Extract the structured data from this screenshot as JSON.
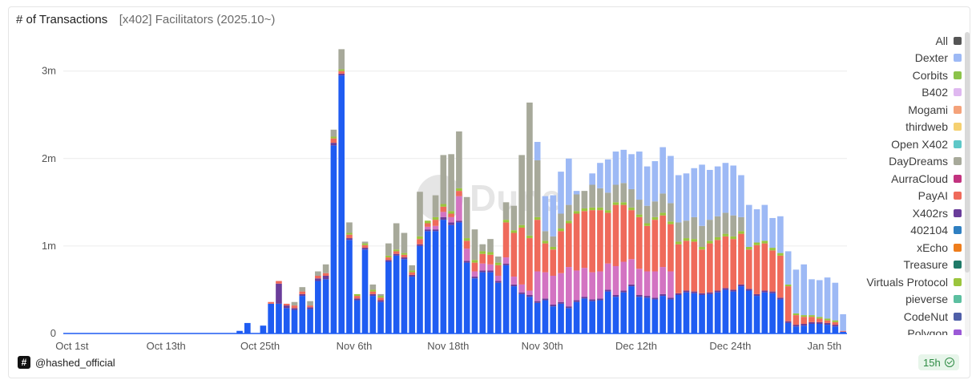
{
  "header": {
    "title": "# of Transactions",
    "subtitle": "[x402] Facilitators (2025.10~)"
  },
  "watermark": "Dune",
  "author": {
    "icon": "#",
    "name": "@hashed_official"
  },
  "freshness": {
    "label": "15h",
    "icon": "check-circle-icon"
  },
  "legend": [
    {
      "name": "All",
      "color": "#555555"
    },
    {
      "name": "Dexter",
      "color": "#9db9f5"
    },
    {
      "name": "Corbits",
      "color": "#8bc34a"
    },
    {
      "name": "B402",
      "color": "#dfb8f0"
    },
    {
      "name": "Mogami",
      "color": "#f4a27a"
    },
    {
      "name": "thirdweb",
      "color": "#f5d070"
    },
    {
      "name": "Open X402",
      "color": "#5ec8c8"
    },
    {
      "name": "DayDreams",
      "color": "#a7a99a"
    },
    {
      "name": "AurraCloud",
      "color": "#c2337f"
    },
    {
      "name": "PayAI",
      "color": "#ef6a5b"
    },
    {
      "name": "X402rs",
      "color": "#6a3d9a"
    },
    {
      "name": "402104",
      "color": "#2f7fc1"
    },
    {
      "name": "xEcho",
      "color": "#ee7d1c"
    },
    {
      "name": "Treasure",
      "color": "#1f7a68"
    },
    {
      "name": "Virtuals Protocol",
      "color": "#9bc53d"
    },
    {
      "name": "pieverse",
      "color": "#5cbfa0"
    },
    {
      "name": "CodeNut",
      "color": "#4f5fa8"
    },
    {
      "name": "Polygon",
      "color": "#9b59d6"
    }
  ],
  "chart_data": {
    "type": "bar",
    "stacked": true,
    "x_tick_labels": [
      "Oct 1st",
      "Oct 13th",
      "Oct 25th",
      "Nov 6th",
      "Nov 18th",
      "Nov 30th",
      "Dec 12th",
      "Dec 24th",
      "Jan 5th"
    ],
    "y_tick_labels": [
      "0",
      "1m",
      "2m",
      "3m"
    ],
    "ylim": [
      0,
      3400000
    ],
    "grid": true,
    "legend_position": "right",
    "categories": [
      "Oct 1",
      "Oct 2",
      "Oct 3",
      "Oct 4",
      "Oct 5",
      "Oct 6",
      "Oct 7",
      "Oct 8",
      "Oct 9",
      "Oct 10",
      "Oct 11",
      "Oct 12",
      "Oct 13",
      "Oct 14",
      "Oct 15",
      "Oct 16",
      "Oct 17",
      "Oct 18",
      "Oct 19",
      "Oct 20",
      "Oct 21",
      "Oct 22",
      "Oct 23",
      "Oct 24",
      "Oct 25",
      "Oct 26",
      "Oct 27",
      "Oct 28",
      "Oct 29",
      "Oct 30",
      "Oct 31",
      "Nov 1",
      "Nov 2",
      "Nov 3",
      "Nov 4",
      "Nov 5",
      "Nov 6",
      "Nov 7",
      "Nov 8",
      "Nov 9",
      "Nov 10",
      "Nov 11",
      "Nov 12",
      "Nov 13",
      "Nov 14",
      "Nov 15",
      "Nov 16",
      "Nov 17",
      "Nov 18",
      "Nov 19",
      "Nov 20",
      "Nov 21",
      "Nov 22",
      "Nov 23",
      "Nov 24",
      "Nov 25",
      "Nov 26",
      "Nov 27",
      "Nov 28",
      "Nov 29",
      "Nov 30",
      "Dec 1",
      "Dec 2",
      "Dec 3",
      "Dec 4",
      "Dec 5",
      "Dec 6",
      "Dec 7",
      "Dec 8",
      "Dec 9",
      "Dec 10",
      "Dec 11",
      "Dec 12",
      "Dec 13",
      "Dec 14",
      "Dec 15",
      "Dec 16",
      "Dec 17",
      "Dec 18",
      "Dec 19",
      "Dec 20",
      "Dec 21",
      "Dec 22",
      "Dec 23",
      "Dec 24",
      "Dec 25",
      "Dec 26",
      "Dec 27",
      "Dec 28",
      "Dec 29",
      "Dec 30",
      "Dec 31",
      "Jan 1",
      "Jan 2",
      "Jan 3",
      "Jan 4",
      "Jan 5",
      "Jan 6",
      "Jan 7",
      "Jan 8"
    ],
    "series": [
      {
        "name": "402104",
        "color": "#1f5cf2",
        "values": [
          0,
          0,
          0,
          0,
          0,
          0,
          0,
          0,
          0,
          0,
          0,
          0,
          0,
          0,
          0,
          0,
          0,
          0,
          0,
          0,
          0,
          0,
          30000,
          120000,
          0,
          90000,
          340000,
          340000,
          290000,
          270000,
          430000,
          280000,
          600000,
          620000,
          2150000,
          2950000,
          1070000,
          380000,
          960000,
          430000,
          360000,
          820000,
          890000,
          850000,
          650000,
          1000000,
          1170000,
          1170000,
          1300000,
          1240000,
          1270000,
          810000,
          630000,
          700000,
          700000,
          580000,
          780000,
          540000,
          450000,
          420000,
          350000,
          380000,
          310000,
          340000,
          290000,
          360000,
          400000,
          370000,
          380000,
          480000,
          420000,
          470000,
          540000,
          420000,
          410000,
          390000,
          430000,
          390000,
          440000,
          470000,
          460000,
          440000,
          450000,
          470000,
          500000,
          480000,
          540000,
          490000,
          430000,
          470000,
          460000,
          390000,
          120000,
          80000,
          90000,
          110000,
          110000,
          100000,
          80000,
          20000
        ]
      },
      {
        "name": "X402rs",
        "color": "#6a3d9a",
        "values": [
          0,
          0,
          0,
          0,
          0,
          0,
          0,
          0,
          0,
          0,
          0,
          0,
          0,
          0,
          0,
          0,
          0,
          0,
          0,
          0,
          0,
          0,
          0,
          0,
          0,
          0,
          0,
          230000,
          30000,
          20000,
          20000,
          20000,
          30000,
          40000,
          30000,
          20000,
          20000,
          20000,
          20000,
          20000,
          20000,
          20000,
          20000,
          20000,
          20000,
          20000,
          20000,
          20000,
          30000,
          30000,
          20000,
          20000,
          20000,
          20000,
          20000,
          20000,
          20000,
          20000,
          20000,
          20000,
          20000,
          20000,
          20000,
          20000,
          20000,
          20000,
          20000,
          20000,
          20000,
          20000,
          20000,
          20000,
          20000,
          20000,
          20000,
          20000,
          20000,
          20000,
          20000,
          20000,
          20000,
          20000,
          20000,
          20000,
          20000,
          20000,
          20000,
          20000,
          20000,
          20000,
          20000,
          20000,
          20000,
          20000,
          20000,
          20000,
          20000,
          20000,
          20000,
          0
        ]
      },
      {
        "name": "AurraCloud",
        "color": "#d373c2",
        "values": [
          0,
          0,
          0,
          0,
          0,
          0,
          0,
          0,
          0,
          0,
          0,
          0,
          0,
          0,
          0,
          0,
          0,
          0,
          0,
          0,
          0,
          0,
          0,
          0,
          0,
          0,
          0,
          0,
          0,
          0,
          0,
          0,
          0,
          0,
          0,
          0,
          0,
          0,
          0,
          0,
          0,
          0,
          0,
          0,
          0,
          0,
          30000,
          40000,
          60000,
          60000,
          280000,
          140000,
          60000,
          80000,
          70000,
          60000,
          70000,
          90000,
          90000,
          50000,
          340000,
          300000,
          330000,
          330000,
          450000,
          340000,
          330000,
          310000,
          310000,
          300000,
          330000,
          330000,
          290000,
          300000,
          280000,
          300000,
          310000,
          300000,
          0,
          0,
          0,
          0,
          0,
          0,
          0,
          0,
          0,
          0,
          0,
          0,
          0,
          0,
          0,
          0,
          0,
          0,
          0,
          0,
          0,
          0
        ]
      },
      {
        "name": "PayAI",
        "color": "#ef6a5b",
        "values": [
          0,
          0,
          0,
          0,
          0,
          0,
          0,
          0,
          0,
          0,
          0,
          0,
          0,
          0,
          0,
          0,
          0,
          0,
          0,
          0,
          0,
          0,
          0,
          0,
          0,
          0,
          20000,
          30000,
          20000,
          30000,
          30000,
          20000,
          30000,
          30000,
          50000,
          30000,
          40000,
          30000,
          30000,
          30000,
          30000,
          30000,
          30000,
          30000,
          30000,
          60000,
          40000,
          70000,
          60000,
          40000,
          60000,
          90000,
          100000,
          110000,
          110000,
          120000,
          400000,
          500000,
          650000,
          600000,
          590000,
          330000,
          300000,
          480000,
          500000,
          650000,
          650000,
          710000,
          700000,
          580000,
          700000,
          650000,
          560000,
          590000,
          520000,
          590000,
          590000,
          540000,
          560000,
          570000,
          570000,
          500000,
          560000,
          580000,
          590000,
          580000,
          580000,
          450000,
          560000,
          540000,
          470000,
          480000,
          400000,
          110000,
          80000,
          60000,
          40000,
          30000,
          30000,
          10000
        ]
      },
      {
        "name": "Virtuals Protocol",
        "color": "#9bc53d",
        "values": [
          0,
          0,
          0,
          0,
          0,
          0,
          0,
          0,
          0,
          0,
          0,
          0,
          0,
          0,
          0,
          0,
          0,
          0,
          0,
          0,
          0,
          0,
          0,
          0,
          0,
          0,
          0,
          0,
          0,
          0,
          0,
          0,
          0,
          0,
          20000,
          20000,
          20000,
          20000,
          20000,
          20000,
          20000,
          20000,
          20000,
          20000,
          20000,
          30000,
          30000,
          30000,
          30000,
          30000,
          30000,
          30000,
          30000,
          30000,
          30000,
          30000,
          30000,
          30000,
          30000,
          30000,
          30000,
          30000,
          30000,
          30000,
          30000,
          30000,
          30000,
          30000,
          30000,
          30000,
          30000,
          30000,
          30000,
          30000,
          30000,
          30000,
          30000,
          30000,
          30000,
          30000,
          30000,
          30000,
          30000,
          30000,
          30000,
          30000,
          30000,
          30000,
          30000,
          30000,
          30000,
          30000,
          20000,
          20000,
          20000,
          20000,
          20000,
          20000,
          20000,
          0
        ]
      },
      {
        "name": "DayDreams",
        "color": "#a7a99a",
        "values": [
          0,
          0,
          0,
          0,
          0,
          0,
          0,
          0,
          0,
          0,
          0,
          0,
          0,
          0,
          0,
          0,
          0,
          0,
          0,
          0,
          0,
          0,
          0,
          0,
          0,
          0,
          0,
          0,
          0,
          40000,
          50000,
          50000,
          50000,
          100000,
          80000,
          230000,
          120000,
          0,
          20000,
          60000,
          20000,
          140000,
          300000,
          230000,
          60000,
          510000,
          0,
          250000,
          560000,
          650000,
          650000,
          470000,
          350000,
          80000,
          150000,
          70000,
          200000,
          280000,
          800000,
          1520000,
          650000,
          110000,
          120000,
          170000,
          180000,
          190000,
          200000,
          260000,
          220000,
          200000,
          200000,
          220000,
          210000,
          170000,
          200000,
          180000,
          220000,
          210000,
          220000,
          200000,
          250000,
          240000,
          240000,
          240000,
          240000,
          240000,
          160000,
          0,
          0,
          0,
          0,
          0,
          0,
          0,
          0,
          0,
          0,
          0,
          0,
          0
        ]
      },
      {
        "name": "Dexter",
        "color": "#9db9f5",
        "values": [
          0,
          0,
          0,
          0,
          0,
          0,
          0,
          0,
          0,
          0,
          0,
          0,
          0,
          0,
          0,
          0,
          0,
          0,
          0,
          0,
          0,
          0,
          0,
          0,
          0,
          0,
          0,
          0,
          0,
          0,
          0,
          0,
          0,
          0,
          0,
          0,
          0,
          0,
          0,
          0,
          0,
          0,
          0,
          0,
          0,
          0,
          0,
          0,
          0,
          0,
          0,
          0,
          0,
          0,
          0,
          0,
          0,
          0,
          0,
          0,
          210000,
          400000,
          470000,
          480000,
          530000,
          40000,
          0,
          130000,
          290000,
          380000,
          380000,
          380000,
          400000,
          550000,
          450000,
          460000,
          530000,
          540000,
          540000,
          540000,
          560000,
          700000,
          570000,
          570000,
          570000,
          570000,
          480000,
          480000,
          380000,
          410000,
          340000,
          420000,
          380000,
          500000,
          580000,
          410000,
          420000,
          470000,
          430000,
          190000
        ]
      }
    ]
  }
}
